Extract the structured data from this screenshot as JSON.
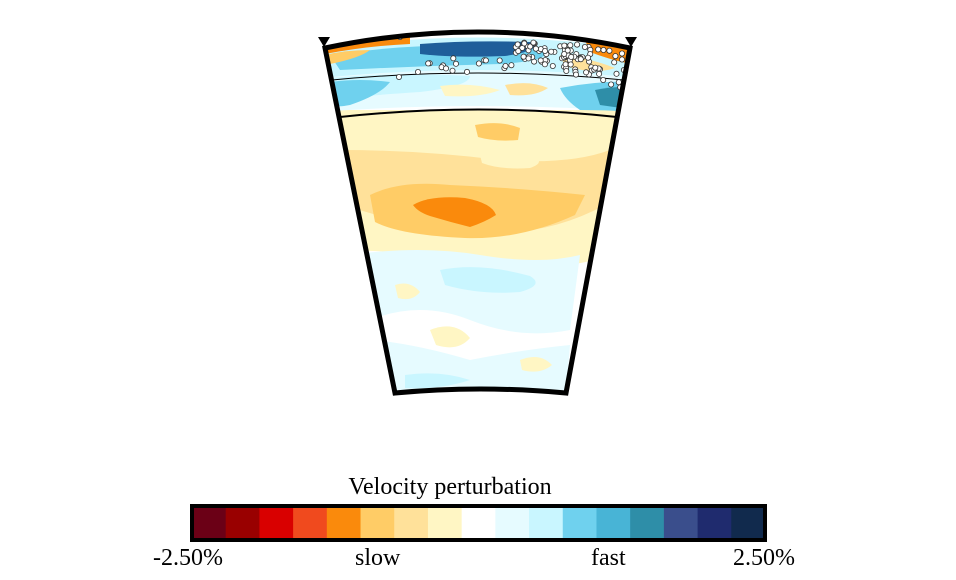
{
  "colorbar": {
    "title": "Velocity perturbation",
    "min_label": "-2.50%",
    "max_label": "2.50%",
    "slow_label": "slow",
    "fast_label": "fast",
    "colors": [
      "#6b0016",
      "#990000",
      "#d90000",
      "#f04a1e",
      "#fa8a0c",
      "#ffcc66",
      "#ffe19a",
      "#fff6c4",
      "#ffffff",
      "#e6fbff",
      "#c9f6ff",
      "#6fd1ee",
      "#48b4d6",
      "#2e8ea8",
      "#3a4e8c",
      "#1f2b6e",
      "#112a4d"
    ]
  },
  "section_colors": {
    "background": "#ffffff",
    "pale_blue": "#e6fbff",
    "light_cyan": "#c9f6ff",
    "pale_yellow": "#fff6c4",
    "light_orange": "#ffe19a",
    "orange_yellow": "#ffcc66",
    "orange": "#fa8a0c",
    "red": "#d90000",
    "mid_blue": "#6fd1ee",
    "dark_blue": "#1f5e9a"
  }
}
